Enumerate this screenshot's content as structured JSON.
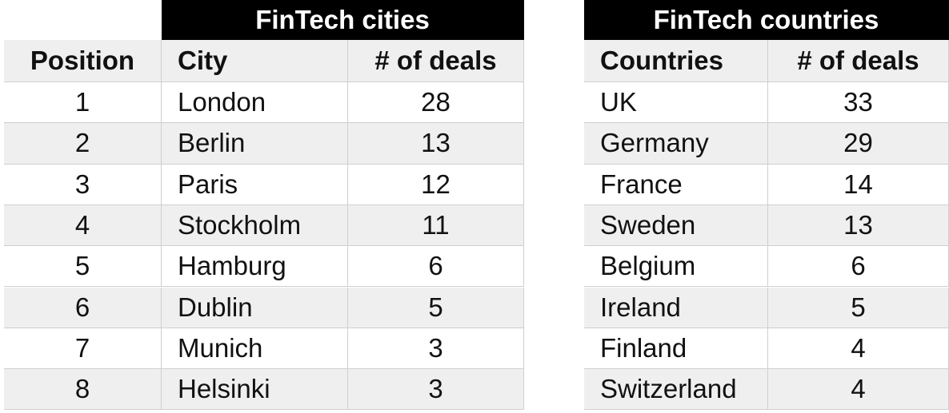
{
  "cities": {
    "title": "FinTech cities",
    "columns": [
      "Position",
      "City",
      "# of deals"
    ],
    "rows": [
      [
        1,
        "London",
        28
      ],
      [
        2,
        "Berlin",
        13
      ],
      [
        3,
        "Paris",
        12
      ],
      [
        4,
        "Stockholm",
        11
      ],
      [
        5,
        "Hamburg",
        6
      ],
      [
        6,
        "Dublin",
        5
      ],
      [
        7,
        "Munich",
        3
      ],
      [
        8,
        "Helsinki",
        3
      ]
    ]
  },
  "countries": {
    "title": "FinTech countries",
    "columns": [
      "Countries",
      "# of deals"
    ],
    "rows": [
      [
        "UK",
        33
      ],
      [
        "Germany",
        29
      ],
      [
        "France",
        14
      ],
      [
        "Sweden",
        13
      ],
      [
        "Belgium",
        6
      ],
      [
        "Ireland",
        5
      ],
      [
        "Finland",
        4
      ],
      [
        "Switzerland",
        4
      ]
    ]
  }
}
